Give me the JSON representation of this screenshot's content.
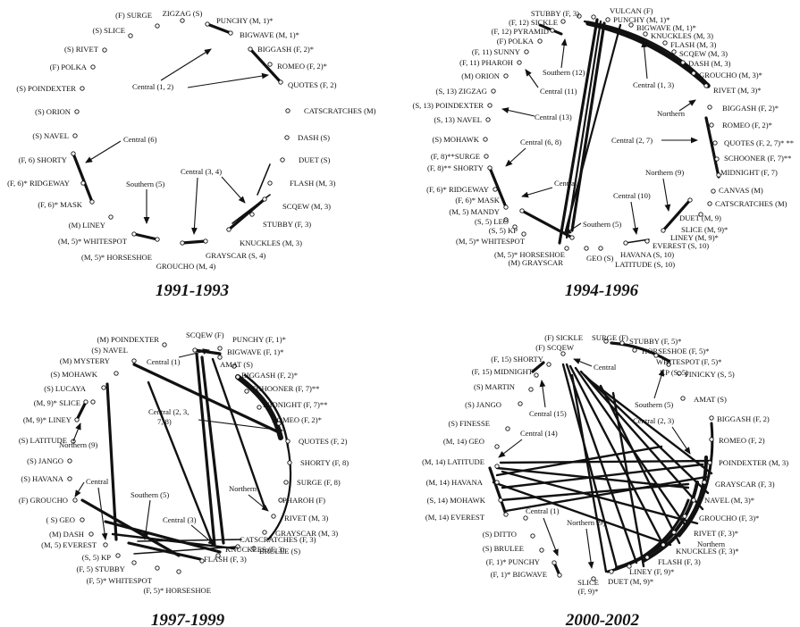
{
  "panels": [
    {
      "year": "1991-1993",
      "nodes": [
        {
          "label": "ZIGZAG (S)"
        },
        {
          "label": "(F) SURGE"
        },
        {
          "label": "PUNCHY (M, 1)*"
        },
        {
          "label": "(S) SLICE"
        },
        {
          "label": "BIGWAVE (M, 1)*"
        },
        {
          "label": "(S) RIVET"
        },
        {
          "label": "BIGGASH (F, 2)*"
        },
        {
          "label": "ROMEO (F, 2)*"
        },
        {
          "label": "(F) POLKA"
        },
        {
          "label": "QUOTES (F, 2)"
        },
        {
          "label": "(S) POINDEXTER"
        },
        {
          "label": "CATSCRATCHES (M)"
        },
        {
          "label": "(S) ORION"
        },
        {
          "label": "(S) NAVEL"
        },
        {
          "label": "DASH (S)"
        },
        {
          "label": "(F, 6) SHORTY"
        },
        {
          "label": "DUET (S)"
        },
        {
          "label": "(F, 6)* RIDGEWAY"
        },
        {
          "label": "FLASH (M, 3)"
        },
        {
          "label": "(F, 6)* MASK"
        },
        {
          "label": "SCQEW (M, 3)"
        },
        {
          "label": "STUBBY (F, 3)"
        },
        {
          "label": "(M) LINEY"
        },
        {
          "label": "KNUCKLES (M, 3)"
        },
        {
          "label": "(M, 5)* WHITESPOT"
        },
        {
          "label": "GRAYSCAR (S, 4)"
        },
        {
          "label": "(M, 5)* HORSESHOE"
        },
        {
          "label": "GROUCHO (M, 4)"
        }
      ],
      "annotations": [
        {
          "label": "Central (1, 2)"
        },
        {
          "label": "Central (6)"
        },
        {
          "label": "Southern (5)"
        },
        {
          "label": "Central (3, 4)"
        }
      ]
    },
    {
      "year": "1994-1996",
      "nodes": [
        {
          "label": "STUBBY (F, 3)"
        },
        {
          "label": "VULCAN (F)"
        },
        {
          "label": "(F, 12) SICKLE"
        },
        {
          "label": "PUNCHY (M, 1)*"
        },
        {
          "label": "(F, 12) PYRAMID"
        },
        {
          "label": "BIGWAVE (M, 1)*"
        },
        {
          "label": "(F) POLKA"
        },
        {
          "label": "KNUCKLES (M, 3)"
        },
        {
          "label": "FLASH (M, 3)"
        },
        {
          "label": "(F, 11) SUNNY"
        },
        {
          "label": "SCQEW (M, 3)"
        },
        {
          "label": "(F, 11) PHAROH"
        },
        {
          "label": "DASH (M, 3)"
        },
        {
          "label": "(M) ORION"
        },
        {
          "label": "GROUCHO (M, 3)*"
        },
        {
          "label": "(S, 13) ZIGZAG"
        },
        {
          "label": "RIVET (M, 3)*"
        },
        {
          "label": "(S, 13) POINDEXTER"
        },
        {
          "label": "(S, 13) NAVEL"
        },
        {
          "label": "BIGGASH (F, 2)*"
        },
        {
          "label": "(S) MOHAWK"
        },
        {
          "label": "ROMEO (F, 2)*"
        },
        {
          "label": "QUOTES (F, 2, 7)* **"
        },
        {
          "label": "(F, 8)**SURGE"
        },
        {
          "label": "SCHOONER (F, 7)**"
        },
        {
          "label": "(F, 8)** SHORTY"
        },
        {
          "label": "MIDNIGHT (F, 7)"
        },
        {
          "label": "(F, 6)* RIDGEWAY"
        },
        {
          "label": "CANVAS (M)"
        },
        {
          "label": "(F, 6)* MASK"
        },
        {
          "label": "CATSCRATCHES (M)"
        },
        {
          "label": "(M, 5) MANDY"
        },
        {
          "label": "DUET (M, 9)"
        },
        {
          "label": "(S, 5) LEO"
        },
        {
          "label": "SLICE (M, 9)*"
        },
        {
          "label": "(S, 5) KP"
        },
        {
          "label": "LINEY (M, 9)*"
        },
        {
          "label": "(M, 5)* WHITESPOT"
        },
        {
          "label": "EVEREST (S, 10)"
        },
        {
          "label": "(M, 5)* HORSESHOE"
        },
        {
          "label": "HAVANA (S, 10)"
        },
        {
          "label": "(M) GRAYSCAR"
        },
        {
          "label": "GEO (S)"
        },
        {
          "label": "LATITUDE (S, 10)"
        }
      ],
      "annotations": [
        {
          "label": "Southern (12)"
        },
        {
          "label": "Central (11)"
        },
        {
          "label": "Central (1, 3)"
        },
        {
          "label": "Central (13)"
        },
        {
          "label": "Northern"
        },
        {
          "label": "Central (6, 8)"
        },
        {
          "label": "Central (2, 7)"
        },
        {
          "label": "Central"
        },
        {
          "label": "Northern (9)"
        },
        {
          "label": "Central (10)"
        },
        {
          "label": "Southern (5)"
        }
      ]
    },
    {
      "year": "1997-1999",
      "nodes": [
        {
          "label": "(M) POINDEXTER"
        },
        {
          "label": "SCQEW (F)"
        },
        {
          "label": "PUNCHY (F, 1)*"
        },
        {
          "label": "(S) NAVEL"
        },
        {
          "label": "BIGWAVE (F, 1)*"
        },
        {
          "label": "(M) MYSTERY"
        },
        {
          "label": "AMAT (S)"
        },
        {
          "label": "(S) MOHAWK"
        },
        {
          "label": "BIGGASH (F, 2)*"
        },
        {
          "label": "(S) LUCAYA"
        },
        {
          "label": "SCHOONER (F, 7)**"
        },
        {
          "label": "(M, 9)* SLICE"
        },
        {
          "label": "MIDNIGHT (F, 7)**"
        },
        {
          "label": "(M, 9)* LINEY"
        },
        {
          "label": "ROMEO (F, 2)*"
        },
        {
          "label": "(S) LATITUDE"
        },
        {
          "label": "QUOTES (F, 2)"
        },
        {
          "label": "(S) JANGO"
        },
        {
          "label": "SHORTY (F, 8)"
        },
        {
          "label": "(S) HAVANA"
        },
        {
          "label": "SURGE (F, 8)"
        },
        {
          "label": "PHAROH (F)"
        },
        {
          "label": "(F) GROUCHO"
        },
        {
          "label": "( S) GEO"
        },
        {
          "label": "RIVET (M, 3)"
        },
        {
          "label": "(M) DASH"
        },
        {
          "label": "GRAYSCAR (M, 3)"
        },
        {
          "label": "(M, 5) EVEREST"
        },
        {
          "label": "BRULEE (S)"
        },
        {
          "label": "(S, 5) KP"
        },
        {
          "label": "CATSCRATCHES (F, 3)"
        },
        {
          "label": "(F, 5) STUBBY"
        },
        {
          "label": "KNUCKLES (F, 3)"
        },
        {
          "label": "(F, 5)* WHITESPOT"
        },
        {
          "label": "FLASH (F, 3)"
        },
        {
          "label": "(F, 5)* HORSESHOE"
        }
      ],
      "annotations": [
        {
          "label": "Central (1)"
        },
        {
          "label": "Central (2, 3,"
        },
        {
          "label": "7, 8)"
        },
        {
          "label": "Northern (9)"
        },
        {
          "label": "Central"
        },
        {
          "label": "Northern"
        },
        {
          "label": "Southern (5)"
        },
        {
          "label": "Central (3)"
        }
      ]
    },
    {
      "year": "2000-2002",
      "nodes": [
        {
          "label": "(F) SICKLE"
        },
        {
          "label": "SURGE (F)"
        },
        {
          "label": "STUBBY (F, 5)*"
        },
        {
          "label": "(F) SCQEW"
        },
        {
          "label": "HORSESHOE (F, 5)*"
        },
        {
          "label": "(F, 15) SHORTY"
        },
        {
          "label": "WHITESPOT (F, 5)*"
        },
        {
          "label": "(F, 15) MIDNIGHT"
        },
        {
          "label": "KP (S, 5)"
        },
        {
          "label": "FINICKY (S, 5)"
        },
        {
          "label": "(S) MARTIN"
        },
        {
          "label": "AMAT (S)"
        },
        {
          "label": "(S) JANGO"
        },
        {
          "label": "BIGGASH (F, 2)"
        },
        {
          "label": "(S) FINESSE"
        },
        {
          "label": "ROMEO (F, 2)"
        },
        {
          "label": "(M, 14) GEO"
        },
        {
          "label": "POINDEXTER (M, 3)"
        },
        {
          "label": "(M, 14) LATITUDE"
        },
        {
          "label": "GRAYSCAR (F, 3)"
        },
        {
          "label": "(M, 14) HAVANA"
        },
        {
          "label": "NAVEL (M, 3)*"
        },
        {
          "label": "(S, 14) MOHAWK"
        },
        {
          "label": "GROUCHO (F, 3)*"
        },
        {
          "label": "(M, 14) EVEREST"
        },
        {
          "label": "RIVET (F, 3)*"
        },
        {
          "label": "KNUCKLES (F, 3)*"
        },
        {
          "label": "(S) DITTO"
        },
        {
          "label": "FLASH (F, 3)"
        },
        {
          "label": "(S) BRULEE"
        },
        {
          "label": "LINEY (F, 9)*"
        },
        {
          "label": "(F, 1)* PUNCHY"
        },
        {
          "label": "DUET (M, 9)*"
        },
        {
          "label": "(F, 1)* BIGWAVE"
        },
        {
          "label": "SLICE"
        },
        {
          "label": "(F, 9)*"
        }
      ],
      "annotations": [
        {
          "label": "Central"
        },
        {
          "label": "Southern (5)"
        },
        {
          "label": "Central (15)"
        },
        {
          "label": "Central (2, 3)"
        },
        {
          "label": "Central (14)"
        },
        {
          "label": "Northern"
        },
        {
          "label": "Central (1)"
        },
        {
          "label": "Northern (9)"
        }
      ]
    }
  ]
}
